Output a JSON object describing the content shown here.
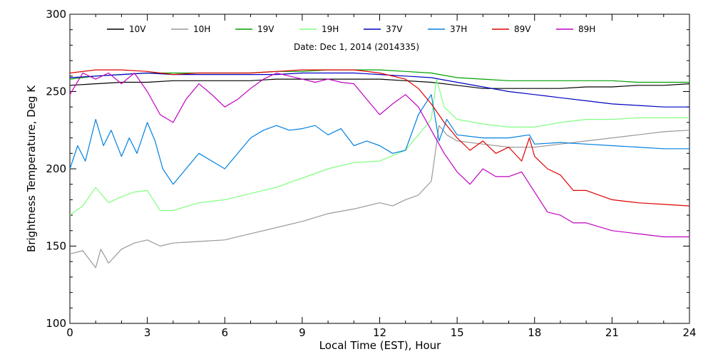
{
  "chart_data": {
    "type": "line",
    "xlabel": "Local Time (EST), Hour",
    "ylabel": "Brightness Temperature, Deg K",
    "annotation": "Date: Dec  1, 2014 (2014335)",
    "xlim": [
      0,
      24
    ],
    "ylim": [
      100,
      300
    ],
    "xticks": [
      0,
      3,
      6,
      9,
      12,
      15,
      18,
      21,
      24
    ],
    "xtick_labels": [
      "0",
      "3",
      "6",
      "9",
      "12",
      "15",
      "18",
      "21",
      "24"
    ],
    "yticks": [
      100,
      150,
      200,
      250,
      300
    ],
    "ytick_labels": [
      "100",
      "150",
      "200",
      "250",
      "300"
    ],
    "grid": false,
    "legend_position": "top",
    "series": [
      {
        "name": "10V",
        "color": "#000000",
        "x": [
          0,
          1,
          2,
          3,
          4,
          5,
          6,
          7,
          8,
          9,
          10,
          11,
          12,
          13,
          14,
          15,
          16,
          17,
          18,
          19,
          20,
          21,
          22,
          23,
          24
        ],
        "y": [
          254,
          255,
          256,
          256,
          257,
          257,
          257,
          257,
          258,
          258,
          258,
          258,
          258,
          257,
          256,
          254,
          252,
          252,
          252,
          252,
          253,
          253,
          254,
          254,
          255
        ]
      },
      {
        "name": "10H",
        "color": "#999999",
        "x": [
          0,
          0.5,
          1,
          1.2,
          1.5,
          2,
          2.5,
          3,
          3.5,
          4,
          5,
          6,
          7,
          8,
          9,
          10,
          11,
          12,
          12.5,
          13,
          13.5,
          14,
          14.3,
          14.6,
          15,
          16,
          17,
          18,
          19,
          20,
          21,
          22,
          23,
          24
        ],
        "y": [
          145,
          147,
          136,
          148,
          139,
          148,
          152,
          154,
          150,
          152,
          153,
          154,
          158,
          162,
          166,
          171,
          174,
          178,
          176,
          180,
          183,
          192,
          228,
          222,
          218,
          216,
          214,
          214,
          216,
          218,
          220,
          222,
          224,
          225
        ]
      },
      {
        "name": "19V",
        "color": "#00a000",
        "x": [
          0,
          1,
          2,
          3,
          4,
          5,
          6,
          7,
          8,
          9,
          10,
          11,
          12,
          13,
          14,
          15,
          16,
          17,
          18,
          19,
          20,
          21,
          22,
          23,
          24
        ],
        "y": [
          258,
          260,
          261,
          262,
          262,
          262,
          262,
          262,
          263,
          263,
          264,
          264,
          264,
          263,
          262,
          259,
          258,
          257,
          257,
          257,
          257,
          257,
          256,
          256,
          256
        ]
      },
      {
        "name": "19H",
        "color": "#80ff80",
        "x": [
          0,
          0.5,
          1,
          1.5,
          2,
          2.5,
          3,
          3.5,
          4,
          5,
          6,
          7,
          8,
          9,
          10,
          11,
          12,
          13,
          13.5,
          14,
          14.2,
          14.5,
          15,
          16,
          17,
          18,
          19,
          20,
          21,
          22,
          23,
          24
        ],
        "y": [
          170,
          176,
          188,
          178,
          182,
          185,
          186,
          173,
          173,
          178,
          180,
          184,
          188,
          194,
          200,
          204,
          205,
          212,
          222,
          232,
          258,
          240,
          232,
          229,
          227,
          227,
          230,
          232,
          232,
          233,
          233,
          233
        ]
      },
      {
        "name": "37V",
        "color": "#0000c0",
        "x": [
          0,
          1,
          2,
          3,
          4,
          5,
          6,
          7,
          8,
          9,
          10,
          11,
          12,
          13,
          14,
          15,
          16,
          17,
          18,
          19,
          20,
          21,
          22,
          23,
          24
        ],
        "y": [
          259,
          260,
          261,
          262,
          261,
          261,
          261,
          261,
          261,
          262,
          262,
          262,
          261,
          260,
          259,
          256,
          253,
          250,
          248,
          246,
          244,
          242,
          241,
          240,
          240
        ]
      },
      {
        "name": "37H",
        "color": "#0080e0",
        "x": [
          0,
          0.3,
          0.6,
          1,
          1.3,
          1.6,
          2,
          2.3,
          2.6,
          3,
          3.3,
          3.6,
          4,
          4.5,
          5,
          5.5,
          6,
          6.5,
          7,
          7.5,
          8,
          8.5,
          9,
          9.5,
          10,
          10.5,
          11,
          11.5,
          12,
          12.5,
          13,
          13.5,
          14,
          14.3,
          14.6,
          15,
          16,
          17,
          17.8,
          18,
          19,
          20,
          21,
          22,
          23,
          24
        ],
        "y": [
          200,
          215,
          205,
          232,
          215,
          225,
          208,
          220,
          210,
          230,
          218,
          200,
          190,
          200,
          210,
          205,
          200,
          210,
          220,
          225,
          228,
          225,
          226,
          228,
          222,
          226,
          215,
          218,
          215,
          210,
          212,
          235,
          248,
          218,
          232,
          222,
          220,
          220,
          222,
          216,
          217,
          216,
          215,
          214,
          213,
          213
        ]
      },
      {
        "name": "89V",
        "color": "#e00000",
        "x": [
          0,
          1,
          2,
          3,
          4,
          5,
          6,
          7,
          8,
          9,
          10,
          11,
          12,
          13,
          13.5,
          14,
          14.5,
          15,
          15.5,
          16,
          16.5,
          17,
          17.5,
          17.8,
          18,
          18.5,
          19,
          19.5,
          20,
          21,
          22,
          23,
          24
        ],
        "y": [
          262,
          264,
          264,
          263,
          261,
          262,
          262,
          262,
          263,
          264,
          264,
          264,
          262,
          258,
          252,
          242,
          230,
          220,
          212,
          218,
          210,
          214,
          205,
          220,
          208,
          200,
          196,
          186,
          186,
          180,
          178,
          177,
          176
        ]
      },
      {
        "name": "89H",
        "color": "#c000c0",
        "x": [
          0,
          0.5,
          1,
          1.5,
          2,
          2.5,
          3,
          3.5,
          4,
          4.5,
          5,
          5.5,
          6,
          6.5,
          7,
          7.5,
          8,
          8.5,
          9,
          9.5,
          10,
          10.5,
          11,
          11.5,
          12,
          12.5,
          13,
          13.5,
          14,
          14.5,
          15,
          15.5,
          16,
          16.5,
          17,
          17.5,
          18,
          18.5,
          19,
          19.5,
          20,
          21,
          22,
          23,
          24
        ],
        "y": [
          248,
          262,
          258,
          262,
          255,
          262,
          250,
          235,
          230,
          245,
          255,
          248,
          240,
          245,
          252,
          258,
          262,
          260,
          258,
          256,
          258,
          256,
          255,
          245,
          235,
          242,
          248,
          240,
          225,
          210,
          198,
          190,
          200,
          195,
          195,
          198,
          185,
          172,
          170,
          165,
          165,
          160,
          158,
          156,
          156
        ]
      }
    ]
  }
}
